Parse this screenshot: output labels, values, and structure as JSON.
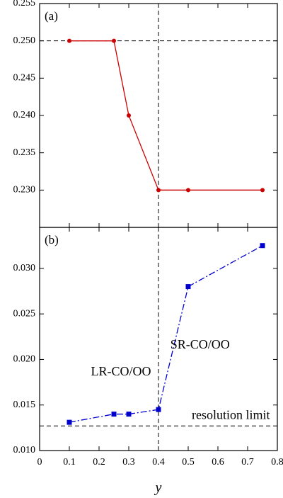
{
  "chart_data": [
    {
      "type": "line",
      "panel_label": "(a)",
      "xlim": [
        0,
        0.8
      ],
      "ylim": [
        0.225,
        0.255
      ],
      "yticks": [
        "0.255",
        "0.250",
        "0.245",
        "0.240",
        "0.235",
        "0.230"
      ],
      "grid": false,
      "reference_lines": [
        {
          "orientation": "horizontal",
          "value": 0.25
        },
        {
          "orientation": "vertical",
          "value": 0.4
        }
      ],
      "series": [
        {
          "color": "#cc0000",
          "style": "solid",
          "marker": "circle",
          "x": [
            0.1,
            0.25,
            0.3,
            0.4,
            0.5,
            0.75
          ],
          "y": [
            0.25,
            0.25,
            0.24,
            0.23,
            0.23,
            0.23
          ]
        }
      ]
    },
    {
      "type": "line",
      "panel_label": "(b)",
      "xlabel": "y",
      "xlim": [
        0,
        0.8
      ],
      "ylim": [
        0.01,
        0.0345
      ],
      "xticks": [
        "0",
        "0.1",
        "0.2",
        "0.3",
        "0.4",
        "0.5",
        "0.6",
        "0.7",
        "0.8"
      ],
      "yticks": [
        "0.030",
        "0.025",
        "0.020",
        "0.015",
        "0.010"
      ],
      "grid": false,
      "reference_lines": [
        {
          "orientation": "horizontal",
          "value": 0.0127
        },
        {
          "orientation": "vertical",
          "value": 0.4
        }
      ],
      "annotations": {
        "lr": "LR-CO/OO",
        "sr": "SR-CO/OO",
        "limit": "resolution limit"
      },
      "series": [
        {
          "color": "#0000cc",
          "style": "dash-dot",
          "marker": "square",
          "x": [
            0.1,
            0.25,
            0.3,
            0.4,
            0.5,
            0.75
          ],
          "y": [
            0.0131,
            0.014,
            0.014,
            0.0145,
            0.028,
            0.0325
          ]
        }
      ]
    }
  ]
}
